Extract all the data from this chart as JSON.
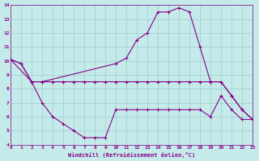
{
  "xlabel": "Windchill (Refroidissement éolien,°C)",
  "xlim": [
    0,
    23
  ],
  "ylim": [
    4,
    14
  ],
  "xticks": [
    0,
    1,
    2,
    3,
    4,
    5,
    6,
    7,
    8,
    9,
    10,
    11,
    12,
    13,
    14,
    15,
    16,
    17,
    18,
    19,
    20,
    21,
    22,
    23
  ],
  "yticks": [
    4,
    5,
    6,
    7,
    8,
    9,
    10,
    11,
    12,
    13,
    14
  ],
  "bg_color": "#c5eaea",
  "grid_color": "#9ecece",
  "line_color": "#880088",
  "line1_x": [
    0,
    1,
    2,
    3,
    10,
    11,
    12,
    13,
    14,
    15,
    16,
    17,
    18,
    19,
    20,
    21,
    22,
    23
  ],
  "line1_y": [
    10.1,
    9.8,
    8.5,
    8.5,
    9.8,
    10.2,
    11.5,
    12.0,
    13.5,
    13.5,
    13.8,
    13.5,
    11.0,
    8.5,
    8.5,
    7.5,
    6.5,
    5.8
  ],
  "line2_x": [
    0,
    2,
    3,
    4,
    5,
    6,
    7,
    8,
    9,
    10,
    11,
    12,
    13,
    14,
    15,
    16,
    17,
    18,
    19,
    20,
    21,
    22,
    23
  ],
  "line2_y": [
    10.1,
    8.5,
    8.5,
    8.5,
    8.5,
    8.5,
    8.5,
    8.5,
    8.5,
    8.5,
    8.5,
    8.5,
    8.5,
    8.5,
    8.5,
    8.5,
    8.5,
    8.5,
    8.5,
    8.5,
    7.5,
    6.5,
    5.8
  ],
  "line3_x": [
    0,
    1,
    2,
    3,
    4,
    5,
    6,
    7,
    8,
    9,
    10,
    11,
    12,
    13,
    14,
    15,
    16,
    17,
    18,
    19,
    20,
    21,
    22,
    23
  ],
  "line3_y": [
    10.1,
    9.8,
    8.5,
    7.0,
    6.0,
    5.5,
    5.0,
    4.5,
    4.5,
    4.5,
    6.5,
    6.5,
    6.5,
    6.5,
    6.5,
    6.5,
    6.5,
    6.5,
    6.5,
    6.0,
    7.5,
    6.5,
    5.8,
    5.8
  ]
}
